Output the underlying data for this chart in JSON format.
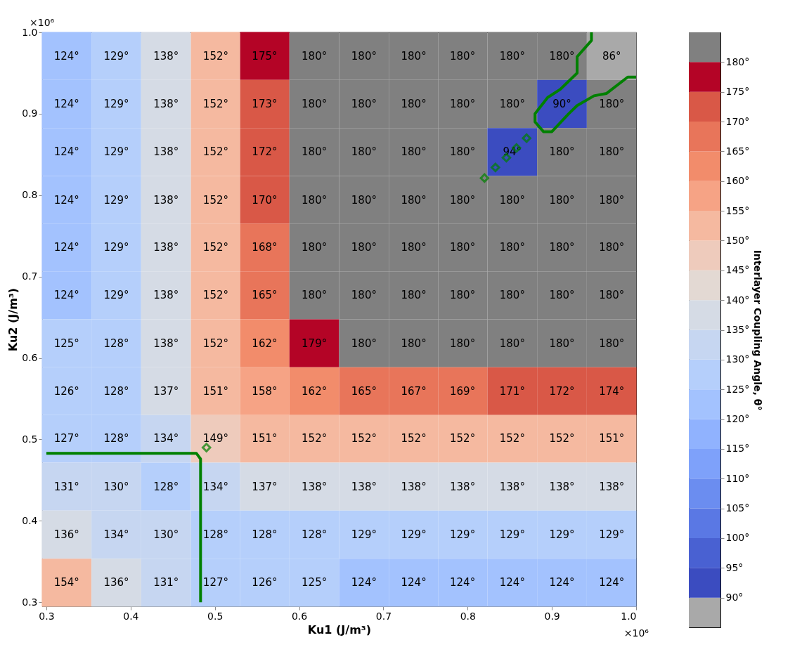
{
  "chart_data": {
    "type": "heatmap",
    "xlabel": "Ku1 (J/m³)",
    "ylabel": "Ku2 (J/m³)",
    "clabel": "Interlayer Coupling Angle, θ°",
    "annotations": [
      "×10⁶",
      "×10⁶"
    ],
    "x": [
      0.324,
      0.383,
      0.442,
      0.501,
      0.559,
      0.618,
      0.677,
      0.736,
      0.794,
      0.853,
      0.912,
      0.971
    ],
    "y": [
      0.971,
      0.912,
      0.853,
      0.794,
      0.736,
      0.677,
      0.618,
      0.559,
      0.501,
      0.442,
      0.383,
      0.324
    ],
    "xlim": [
      0.295,
      1.0
    ],
    "ylim": [
      0.295,
      1.0
    ],
    "xticks": [
      0.3,
      0.4,
      0.5,
      0.6,
      0.7,
      0.8,
      0.9,
      {
        "value": 1.0,
        "label": "1.0"
      }
    ],
    "yticks": [
      0.3,
      0.4,
      0.5,
      0.6,
      0.7,
      0.8,
      0.9,
      {
        "value": 1.0,
        "label": "1.0"
      }
    ],
    "cells": [
      [
        124,
        129,
        138,
        152,
        175,
        180,
        180,
        180,
        180,
        180,
        180,
        86
      ],
      [
        124,
        129,
        138,
        152,
        173,
        180,
        180,
        180,
        180,
        180,
        90,
        180
      ],
      [
        124,
        129,
        138,
        152,
        172,
        180,
        180,
        180,
        180,
        94,
        180,
        180
      ],
      [
        124,
        129,
        138,
        152,
        170,
        180,
        180,
        180,
        180,
        180,
        180,
        180
      ],
      [
        124,
        129,
        138,
        152,
        168,
        180,
        180,
        180,
        180,
        180,
        180,
        180
      ],
      [
        124,
        129,
        138,
        152,
        165,
        180,
        180,
        180,
        180,
        180,
        180,
        180
      ],
      [
        125,
        128,
        138,
        152,
        162,
        179,
        180,
        180,
        180,
        180,
        180,
        180
      ],
      [
        126,
        128,
        137,
        151,
        158,
        162,
        165,
        167,
        169,
        171,
        172,
        174
      ],
      [
        127,
        128,
        134,
        149,
        151,
        152,
        152,
        152,
        152,
        152,
        152,
        151
      ],
      [
        131,
        130,
        128,
        134,
        137,
        138,
        138,
        138,
        138,
        138,
        138,
        138
      ],
      [
        136,
        134,
        130,
        128,
        128,
        128,
        129,
        129,
        129,
        129,
        129,
        129
      ],
      [
        154,
        136,
        131,
        127,
        126,
        125,
        124,
        124,
        124,
        124,
        124,
        124
      ]
    ],
    "cell_labels": [
      [
        "124°",
        "129°",
        "138°",
        "152°",
        "175°",
        "180°",
        "180°",
        "180°",
        "180°",
        "180°",
        "180°",
        "86°"
      ],
      [
        "124°",
        "129°",
        "138°",
        "152°",
        "173°",
        "180°",
        "180°",
        "180°",
        "180°",
        "180°",
        "90°",
        "180°"
      ],
      [
        "124°",
        "129°",
        "138°",
        "152°",
        "172°",
        "180°",
        "180°",
        "180°",
        "180°",
        "94°",
        "180°",
        "180°"
      ],
      [
        "124°",
        "129°",
        "138°",
        "152°",
        "170°",
        "180°",
        "180°",
        "180°",
        "180°",
        "180°",
        "180°",
        "180°"
      ],
      [
        "124°",
        "129°",
        "138°",
        "152°",
        "168°",
        "180°",
        "180°",
        "180°",
        "180°",
        "180°",
        "180°",
        "180°"
      ],
      [
        "124°",
        "129°",
        "138°",
        "152°",
        "165°",
        "180°",
        "180°",
        "180°",
        "180°",
        "180°",
        "180°",
        "180°"
      ],
      [
        "125°",
        "128°",
        "138°",
        "152°",
        "162°",
        "179°",
        "180°",
        "180°",
        "180°",
        "180°",
        "180°",
        "180°"
      ],
      [
        "126°",
        "128°",
        "137°",
        "151°",
        "158°",
        "162°",
        "165°",
        "167°",
        "169°",
        "171°",
        "172°",
        "174°"
      ],
      [
        "127°",
        "128°",
        "134°",
        "149°",
        "151°",
        "152°",
        "152°",
        "152°",
        "152°",
        "152°",
        "152°",
        "151°"
      ],
      [
        "131°",
        "130°",
        "128°",
        "134°",
        "137°",
        "138°",
        "138°",
        "138°",
        "138°",
        "138°",
        "138°",
        "138°"
      ],
      [
        "136°",
        "134°",
        "130°",
        "128°",
        "128°",
        "128°",
        "129°",
        "129°",
        "129°",
        "129°",
        "129°",
        "129°"
      ],
      [
        "154°",
        "136°",
        "131°",
        "127°",
        "126°",
        "125°",
        "124°",
        "124°",
        "124°",
        "124°",
        "124°",
        "124°"
      ]
    ],
    "clim": [
      85,
      185
    ],
    "cticks": [
      {
        "value": 90,
        "label": "90°"
      },
      {
        "value": 95,
        "label": "95°"
      },
      {
        "value": 100,
        "label": "100°"
      },
      {
        "value": 105,
        "label": "105°"
      },
      {
        "value": 110,
        "label": "110°"
      },
      {
        "value": 115,
        "label": "115°"
      },
      {
        "value": 120,
        "label": "120°"
      },
      {
        "value": 125,
        "label": "125°"
      },
      {
        "value": 130,
        "label": "130°"
      },
      {
        "value": 135,
        "label": "135°"
      },
      {
        "value": 140,
        "label": "140°"
      },
      {
        "value": 145,
        "label": "145°"
      },
      {
        "value": 150,
        "label": "150°"
      },
      {
        "value": 155,
        "label": "155°"
      },
      {
        "value": 160,
        "label": "160°"
      },
      {
        "value": 165,
        "label": "165°"
      },
      {
        "value": 170,
        "label": "170°"
      },
      {
        "value": 175,
        "label": "175°"
      },
      {
        "value": 180,
        "label": "180°"
      }
    ],
    "colors": [
      "#a9a9a9",
      "#3b4cc0",
      "#4961d2",
      "#5a78e4",
      "#6b8df0",
      "#7ea1fa",
      "#90b2fe",
      "#a3c2fe",
      "#b5cffb",
      "#c6d6f1",
      "#d5dbe5",
      "#e3d9d3",
      "#eecbbc",
      "#f5b9a0",
      "#f6a385",
      "#f28c6b",
      "#e8755a",
      "#d95847",
      "#b40426",
      "#808080"
    ],
    "series": [
      {
        "type": "line",
        "color": "#008000",
        "marker": "none",
        "x": [
          0.3,
          0.478,
          0.483,
          0.483
        ],
        "values": [
          0.483,
          0.483,
          0.476,
          0.3
        ]
      },
      {
        "type": "line",
        "color": "#008000",
        "marker": "none",
        "x": [
          0.947,
          0.947,
          0.93,
          0.93,
          0.91,
          0.895,
          0.88,
          0.88,
          0.89,
          0.9,
          0.92,
          0.93,
          0.95,
          0.965,
          0.99,
          1.0
        ],
        "values": [
          1.0,
          0.99,
          0.97,
          0.95,
          0.93,
          0.92,
          0.9,
          0.89,
          0.878,
          0.878,
          0.9,
          0.91,
          0.922,
          0.925,
          0.945,
          0.945
        ]
      },
      {
        "type": "scatter",
        "color": "#008000",
        "marker": "diamond",
        "x": [
          0.49,
          0.82,
          0.833,
          0.846,
          0.858,
          0.87
        ],
        "values": [
          0.49,
          0.821,
          0.834,
          0.846,
          0.858,
          0.87
        ]
      }
    ]
  }
}
